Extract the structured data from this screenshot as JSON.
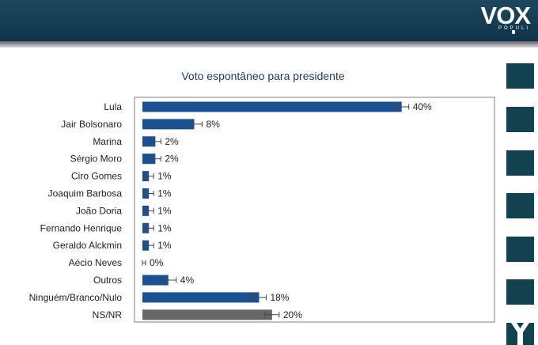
{
  "header": {
    "brand": "VOX",
    "brand_sub": "POPULI",
    "colors": {
      "band": "#15405a",
      "shadow": "#6b6e71"
    }
  },
  "side_squares": {
    "color": "#12424f",
    "count": 6,
    "icon": "x-icon"
  },
  "chart_data": {
    "type": "bar",
    "orientation": "horizontal",
    "title": "Voto espontâneo para presidente",
    "categories": [
      "Lula",
      "Jair Bolsonaro",
      "Marina",
      "Sérgio Moro",
      "Ciro Gomes",
      "Joaquim Barbosa",
      "João Doria",
      "Fernando Henrique",
      "Geraldo Alckmin",
      "Aécio Neves",
      "Outros",
      "Ninguém/Branco/Nulo",
      "NS/NR"
    ],
    "values": [
      40,
      8,
      2,
      2,
      1,
      1,
      1,
      1,
      1,
      0,
      4,
      18,
      20
    ],
    "value_labels": [
      "40%",
      "8%",
      "2%",
      "2%",
      "1%",
      "1%",
      "1%",
      "1%",
      "1%",
      "0%",
      "4%",
      "18%",
      "20%"
    ],
    "error_bars": true,
    "xlim": [
      0,
      52
    ],
    "grid": false,
    "colors": {
      "bar": "#1a5193",
      "last_bar": "#676767",
      "border": "#7f7f7f"
    }
  }
}
